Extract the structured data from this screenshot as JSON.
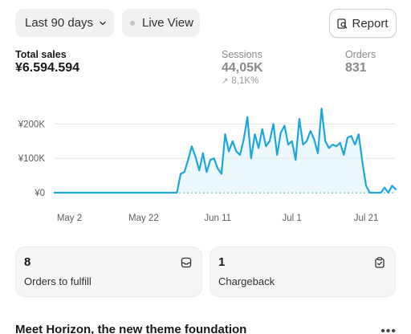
{
  "toolbar": {
    "date_range": "Last 90 days",
    "live_view": "Live View",
    "report": "Report"
  },
  "metrics": {
    "total_sales": {
      "label": "Total sales",
      "value": "¥6.594.594"
    },
    "sessions": {
      "label": "Sessions",
      "value": "44,05K",
      "delta": "8,1K%"
    },
    "orders": {
      "label": "Orders",
      "value": "831"
    }
  },
  "chart_data": {
    "type": "line",
    "title": "",
    "xlabel": "",
    "ylabel": "",
    "y_ticks": [
      "¥0",
      "¥100K",
      "¥200K"
    ],
    "x_ticks": [
      "May 2",
      "May 22",
      "Jun 11",
      "Jul 1",
      "Jul 21"
    ],
    "ylim": [
      0,
      250000
    ],
    "x_range": [
      "2024-04-28",
      "2024-07-29"
    ],
    "grid": true,
    "colors": {
      "line": "#1ba6dc",
      "fill": "#dff2fb",
      "grid": "#e3e3e3",
      "baseline": "#45b6a6"
    },
    "series": [
      {
        "x": [
          "2024-04-28",
          "2024-05-02",
          "2024-05-12",
          "2024-05-22",
          "2024-05-31",
          "2024-06-01",
          "2024-06-02",
          "2024-06-03",
          "2024-06-04",
          "2024-06-05",
          "2024-06-06",
          "2024-06-07",
          "2024-06-08",
          "2024-06-09",
          "2024-06-10",
          "2024-06-11",
          "2024-06-12",
          "2024-06-13",
          "2024-06-14",
          "2024-06-15",
          "2024-06-16",
          "2024-06-17",
          "2024-06-18",
          "2024-06-19",
          "2024-06-20",
          "2024-06-21",
          "2024-06-22",
          "2024-06-23",
          "2024-06-24",
          "2024-06-25",
          "2024-06-26",
          "2024-06-27",
          "2024-06-28",
          "2024-06-29",
          "2024-06-30",
          "2024-07-01",
          "2024-07-02",
          "2024-07-03",
          "2024-07-04",
          "2024-07-05",
          "2024-07-06",
          "2024-07-07",
          "2024-07-08",
          "2024-07-09",
          "2024-07-10",
          "2024-07-11",
          "2024-07-12",
          "2024-07-13",
          "2024-07-14",
          "2024-07-15",
          "2024-07-16",
          "2024-07-17",
          "2024-07-18",
          "2024-07-19",
          "2024-07-20",
          "2024-07-21",
          "2024-07-22",
          "2024-07-23",
          "2024-07-24",
          "2024-07-25",
          "2024-07-26",
          "2024-07-27",
          "2024-07-28",
          "2024-07-29"
        ],
        "y": [
          0,
          0,
          0,
          0,
          0,
          55000,
          60000,
          95000,
          135000,
          105000,
          65000,
          115000,
          60000,
          95000,
          100000,
          70000,
          55000,
          170000,
          120000,
          150000,
          120000,
          110000,
          155000,
          220000,
          100000,
          170000,
          130000,
          185000,
          135000,
          150000,
          200000,
          110000,
          175000,
          195000,
          140000,
          150000,
          95000,
          215000,
          140000,
          150000,
          180000,
          155000,
          115000,
          245000,
          150000,
          130000,
          140000,
          135000,
          145000,
          110000,
          160000,
          165000,
          140000,
          170000,
          90000,
          20000,
          0,
          0,
          0,
          0,
          15000,
          0,
          20000,
          10000
        ]
      }
    ]
  },
  "cards": [
    {
      "count": "8",
      "label": "Orders to fulfill",
      "icon": "inbox-icon"
    },
    {
      "count": "1",
      "label": "Chargeback",
      "icon": "clipboard-check-icon"
    }
  ],
  "news": {
    "title": "Meet Horizon, the new theme foundation",
    "more": "•••"
  }
}
